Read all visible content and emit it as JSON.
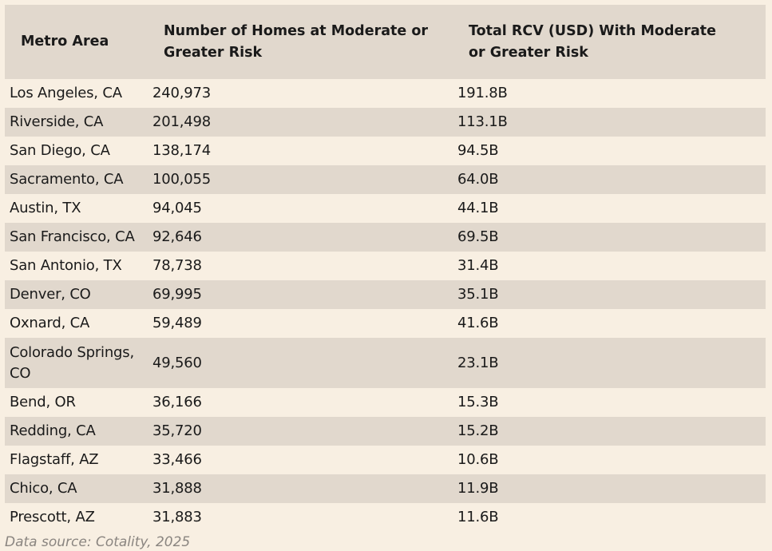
{
  "chart_data": {
    "type": "table",
    "columns": [
      "Metro Area",
      "Number of Homes at Moderate or Greater Risk",
      "Total RCV (USD) With Moderate or Greater Risk"
    ],
    "rows": [
      [
        "Los Angeles, CA",
        "240,973",
        "191.8B"
      ],
      [
        "Riverside, CA",
        "201,498",
        "113.1B"
      ],
      [
        "San Diego, CA",
        "138,174",
        "94.5B"
      ],
      [
        "Sacramento, CA",
        "100,055",
        "64.0B"
      ],
      [
        "Austin, TX",
        "94,045",
        "44.1B"
      ],
      [
        "San Francisco, CA",
        "92,646",
        "69.5B"
      ],
      [
        "San Antonio, TX",
        "78,738",
        "31.4B"
      ],
      [
        "Denver, CO",
        "69,995",
        "35.1B"
      ],
      [
        "Oxnard, CA",
        "59,489",
        "41.6B"
      ],
      [
        "Colorado Springs, CO",
        "49,560",
        "23.1B"
      ],
      [
        "Bend, OR",
        "36,166",
        "15.3B"
      ],
      [
        "Redding, CA",
        "35,720",
        "15.2B"
      ],
      [
        "Flagstaff, AZ",
        "33,466",
        "10.6B"
      ],
      [
        "Chico, CA",
        "31,888",
        "11.9B"
      ],
      [
        "Prescott, AZ",
        "31,883",
        "11.6B"
      ]
    ]
  },
  "source": "Data source: Cotality, 2025"
}
